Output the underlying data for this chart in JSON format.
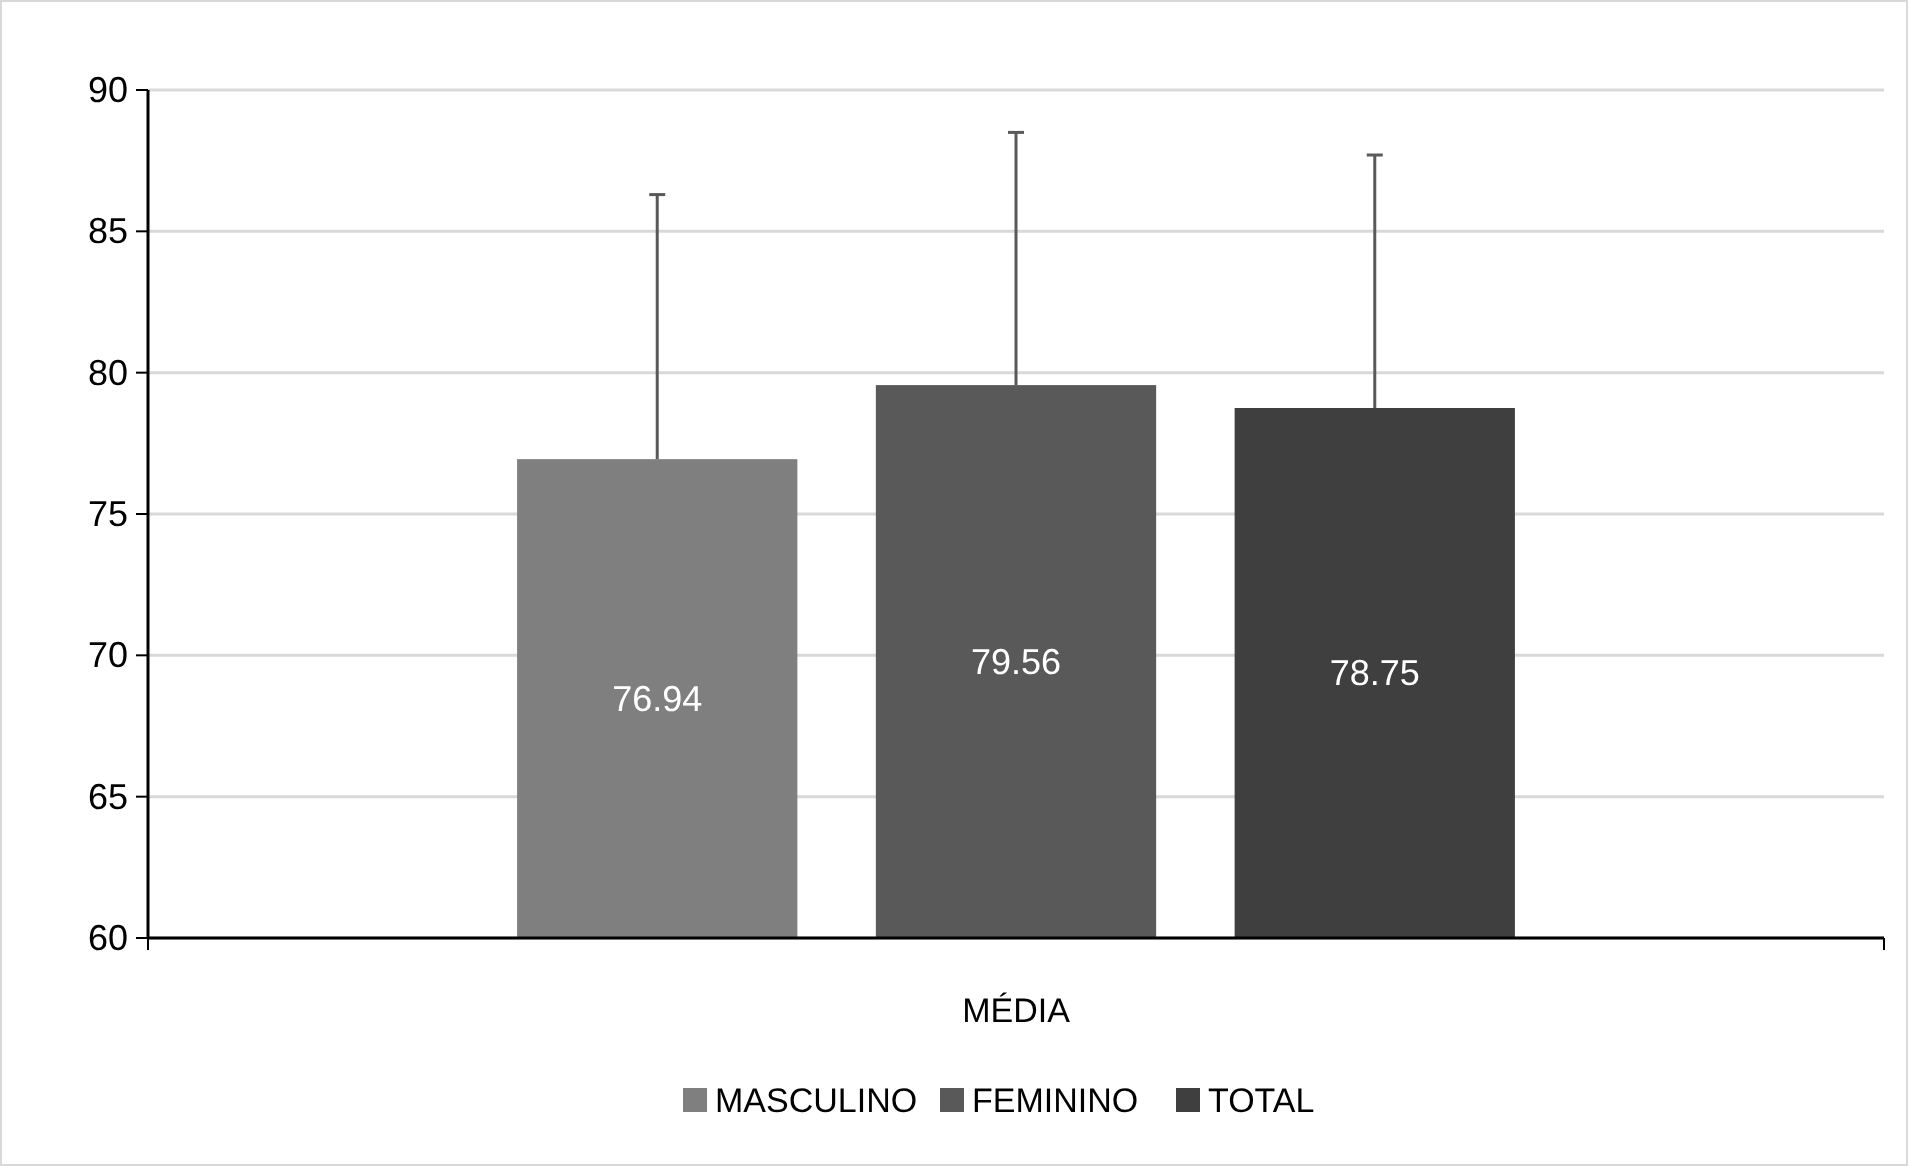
{
  "chart_data": {
    "type": "bar",
    "categories": [
      "MÉDIA"
    ],
    "series": [
      {
        "name": "MASCULINO",
        "color": "#7f7f7f",
        "values": [
          76.94
        ],
        "errors": [
          [
            76.94,
            86.3
          ]
        ]
      },
      {
        "name": "FEMININO",
        "color": "#595959",
        "values": [
          79.56
        ],
        "errors": [
          [
            79.56,
            88.5
          ]
        ]
      },
      {
        "name": "TOTAL",
        "color": "#3f3f3f",
        "values": [
          78.75
        ],
        "errors": [
          [
            78.75,
            87.7
          ]
        ]
      }
    ],
    "ylim": [
      60,
      90
    ],
    "yticks": [
      60,
      65,
      70,
      75,
      80,
      85,
      90
    ],
    "grid": "y",
    "legend": "bottom",
    "data_labels": true
  }
}
